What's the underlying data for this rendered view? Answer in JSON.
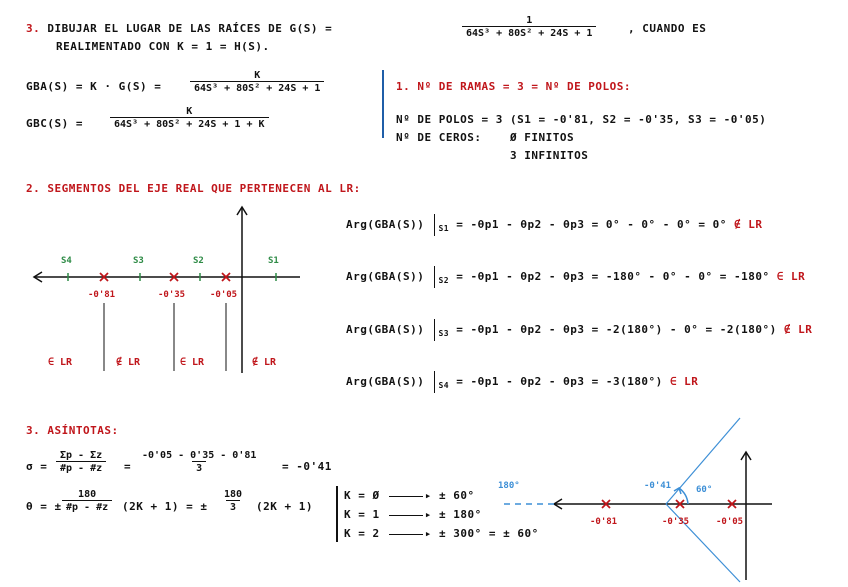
{
  "p1": {
    "num": "3.",
    "title": "DIBUJAR EL LUGAR DE LAS RAÍCES DE G(S) =",
    "g_num": "1",
    "g_den": "64S³ + 80S² + 24S + 1",
    "title_cont": ", CUANDO ES",
    "title_line2": "REALIMENTADO CON K = 1 = H(S)."
  },
  "gba": {
    "lhs": "GBA(S) = K · G(S) =",
    "num": "K",
    "den": "64S³ + 80S² + 24S + 1"
  },
  "gbc": {
    "lhs": "GBC(S) =",
    "num": "K",
    "den": "64S³ + 80S² + 24S + 1 + K"
  },
  "ramas": {
    "title": "1. Nº DE RAMAS = 3 = Nº DE POLOS:",
    "polos": "Nº DE POLOS = 3  (S1 = -0'81, S2 = -0'35, S3 = -0'05)",
    "ceros_label": "Nº DE CEROS:",
    "ceros_finitos": "Ø FINITOS",
    "ceros_infinitos": "3 INFINITOS"
  },
  "seg": {
    "title": "2. SEGMENTOS DEL EJE REAL QUE PERTENECEN AL LR:",
    "test_points": [
      "S4",
      "S3",
      "S2",
      "S1"
    ],
    "poles": [
      "-0'81",
      "-0'35",
      "-0'05"
    ],
    "regions": [
      "∈ LR",
      "∉ LR",
      "∈ LR",
      "∉ LR"
    ]
  },
  "args": [
    {
      "lhs": "Arg(GBA(S))",
      "sub": "S1",
      "eq": "= -θp1 - θp2 - θp3 = 0° - 0° - 0° = 0°",
      "res": "∉ LR"
    },
    {
      "lhs": "Arg(GBA(S))",
      "sub": "S2",
      "eq": "= -θp1 - θp2 - θp3 = -180° - 0° - 0° = -180°",
      "res": "∈ LR"
    },
    {
      "lhs": "Arg(GBA(S))",
      "sub": "S3",
      "eq": "= -θp1 - θp2 - θp3 = -2(180°) - 0° = -2(180°)",
      "res": "∉ LR"
    },
    {
      "lhs": "Arg(GBA(S))",
      "sub": "S4",
      "eq": "= -θp1 - θp2 - θp3 = -3(180°)",
      "res": "∈ LR"
    }
  ],
  "asint": {
    "title": "3. ASÍNTOTAS:",
    "sigma_lhs": "σ =",
    "sigma_num": "Σp - Σz",
    "sigma_den": "#p - #z",
    "sigma_eq": "=",
    "sigma_num2": "-0'05 - 0'35 - 0'81",
    "sigma_den2": "3",
    "sigma_res": "= -0'41",
    "theta_lhs": "θ = ±",
    "theta_num": "180",
    "theta_den": "#p - #z",
    "theta_mid": "(2K + 1) = ±",
    "theta_num2": "180",
    "theta_den2": "3",
    "theta_end": "(2K + 1)",
    "k_cases": [
      {
        "k": "K = Ø",
        "v": "± 60°"
      },
      {
        "k": "K = 1",
        "v": "± 180°"
      },
      {
        "k": "K = 2",
        "v": "± 300° = ± 60°"
      }
    ]
  },
  "diagram": {
    "angle_180": "180°",
    "centroid": "-0'41",
    "angle_60": "60°",
    "poles": [
      "-0'81",
      "-0'35",
      "-0'05"
    ]
  }
}
